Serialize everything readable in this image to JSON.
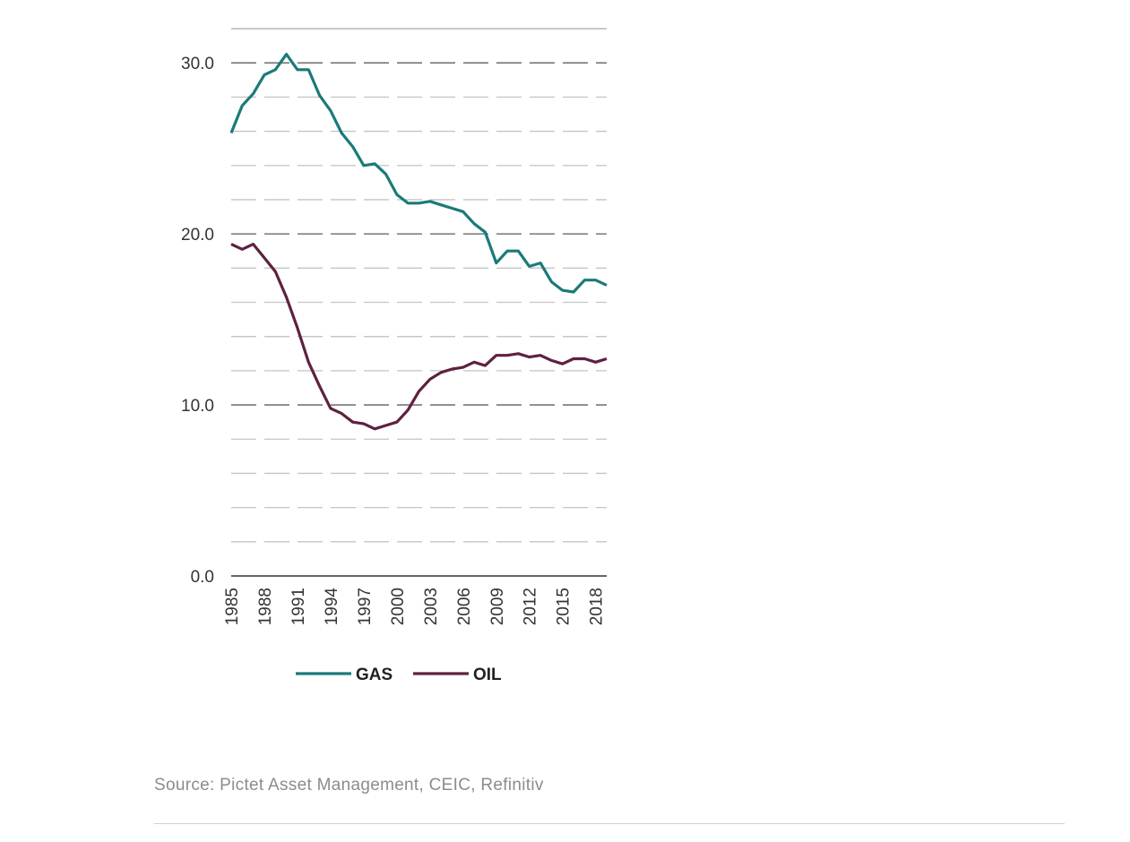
{
  "chart_data": {
    "type": "line",
    "title": "",
    "xlabel": "",
    "ylabel": "",
    "ylim": [
      0,
      32
    ],
    "xlim": [
      1985,
      2019
    ],
    "yticks": [
      0,
      10,
      20,
      30
    ],
    "ytick_labels": [
      "0.0",
      "10.0",
      "20.0",
      "30.0"
    ],
    "xtick_labels": [
      "1985",
      "1988",
      "1991",
      "1994",
      "1997",
      "2000",
      "2003",
      "2006",
      "2009",
      "2012",
      "2015",
      "2018"
    ],
    "grid": true,
    "x": [
      1985,
      1986,
      1987,
      1988,
      1989,
      1990,
      1991,
      1992,
      1993,
      1994,
      1995,
      1996,
      1997,
      1998,
      1999,
      2000,
      2001,
      2002,
      2003,
      2004,
      2005,
      2006,
      2007,
      2008,
      2009,
      2010,
      2011,
      2012,
      2013,
      2014,
      2015,
      2016,
      2017,
      2018,
      2019
    ],
    "series": [
      {
        "name": "GAS",
        "color": "#1a7a7a",
        "values": [
          25.9,
          27.5,
          28.2,
          29.3,
          29.6,
          30.5,
          29.6,
          29.6,
          28.1,
          27.2,
          25.9,
          25.1,
          24.0,
          24.1,
          23.5,
          22.3,
          21.8,
          21.8,
          21.9,
          21.7,
          21.5,
          21.3,
          20.6,
          20.1,
          18.3,
          19.0,
          19.0,
          18.1,
          18.3,
          17.2,
          16.7,
          16.6,
          17.3,
          17.3,
          17.0
        ]
      },
      {
        "name": "OIL",
        "color": "#5e2140",
        "values": [
          19.4,
          19.1,
          19.4,
          18.6,
          17.8,
          16.3,
          14.5,
          12.5,
          11.1,
          9.8,
          9.5,
          9.0,
          8.9,
          8.6,
          8.8,
          9.0,
          9.7,
          10.8,
          11.5,
          11.9,
          12.1,
          12.2,
          12.5,
          12.3,
          12.9,
          12.9,
          13.0,
          12.8,
          12.9,
          12.6,
          12.4,
          12.7,
          12.7,
          12.5,
          12.7
        ]
      }
    ],
    "legend": {
      "position": "bottom",
      "entries": [
        "GAS",
        "OIL"
      ]
    }
  },
  "source": "Source: Pictet Asset Management, CEIC, Refinitiv"
}
